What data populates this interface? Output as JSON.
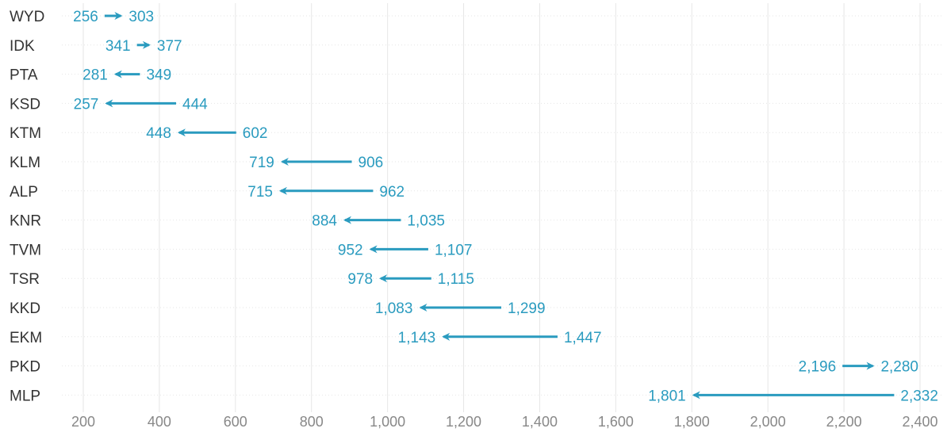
{
  "chart_data": {
    "type": "arrow",
    "title": "",
    "xlabel": "",
    "ylabel": "",
    "xlim": [
      170,
      2420
    ],
    "x_ticks": [
      200,
      400,
      600,
      800,
      1000,
      1200,
      1400,
      1600,
      1800,
      2000,
      2200,
      2400
    ],
    "x_tick_labels": [
      "200",
      "400",
      "600",
      "800",
      "1,000",
      "1,200",
      "1,400",
      "1,600",
      "1,800",
      "2,000",
      "2,200",
      "2,400"
    ],
    "grid": {
      "vertical": true,
      "horizontal_dotted": true
    },
    "colors": {
      "arrow": "#2a9bbf",
      "label": "#2a9bbf",
      "category": "#333333",
      "tick": "#888888",
      "grid": "#e6e6e6"
    },
    "categories": [
      "WYD",
      "IDK",
      "PTA",
      "KSD",
      "KTM",
      "KLM",
      "ALP",
      "KNR",
      "TVM",
      "TSR",
      "KKD",
      "EKM",
      "PKD",
      "MLP"
    ],
    "series": [
      {
        "values": [
          256,
          341,
          349,
          444,
          602,
          906,
          962,
          1035,
          1107,
          1115,
          1299,
          1447,
          2196,
          2332
        ]
      },
      {
        "values": [
          303,
          377,
          281,
          257,
          448,
          719,
          715,
          884,
          952,
          978,
          1083,
          1143,
          2280,
          1801
        ]
      }
    ],
    "value_labels": [
      {
        "from": "256",
        "to": "303"
      },
      {
        "from": "341",
        "to": "377"
      },
      {
        "from": "349",
        "to": "281"
      },
      {
        "from": "444",
        "to": "257"
      },
      {
        "from": "602",
        "to": "448"
      },
      {
        "from": "906",
        "to": "719"
      },
      {
        "from": "962",
        "to": "715"
      },
      {
        "from": "1,035",
        "to": "884"
      },
      {
        "from": "1,107",
        "to": "952"
      },
      {
        "from": "1,115",
        "to": "978"
      },
      {
        "from": "1,299",
        "to": "1,083"
      },
      {
        "from": "1,447",
        "to": "1,143"
      },
      {
        "from": "2,196",
        "to": "2,280"
      },
      {
        "from": "2,332",
        "to": "1,801"
      }
    ]
  }
}
